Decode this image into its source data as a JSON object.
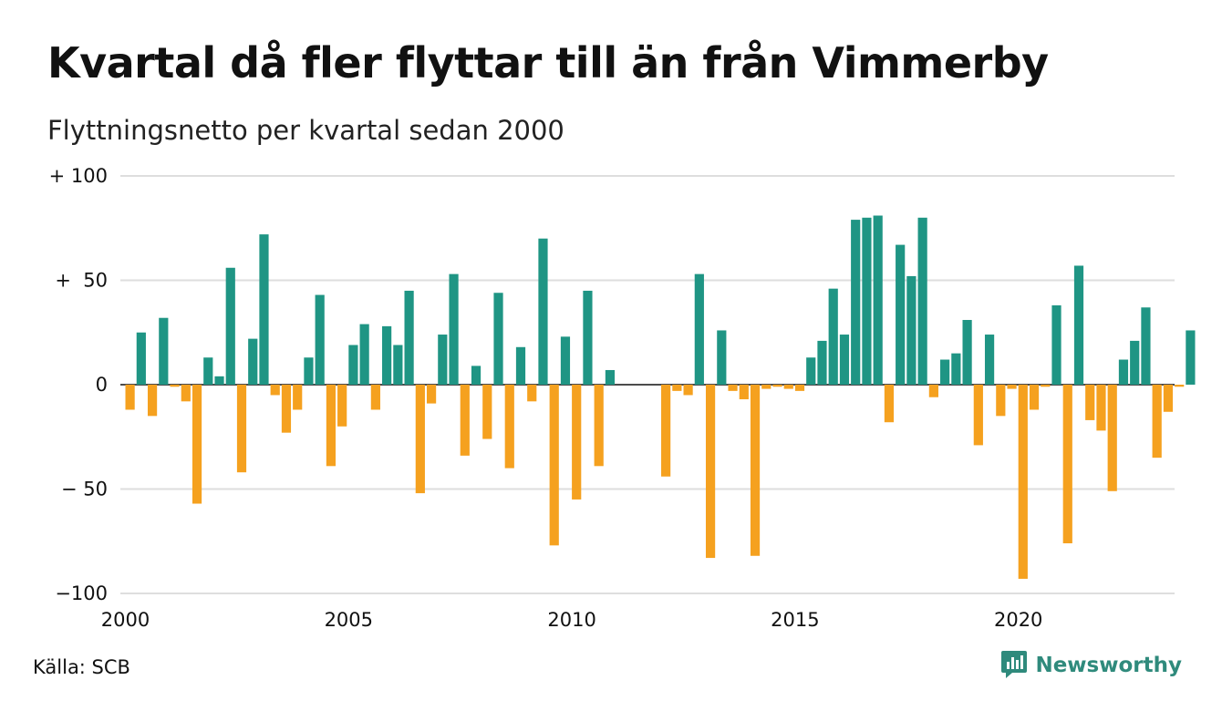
{
  "title": "Kvartal då fler flyttar till än från Vimmerby",
  "subtitle": "Flyttningsnetto per kvartal sedan 2000",
  "source": "Källa: SCB",
  "brand": {
    "name": "Newsworthy",
    "icon": "newsworthy-chart-logo-icon"
  },
  "colors": {
    "positive": "#1f9584",
    "negative": "#f5a11f",
    "grid": "#dedede",
    "brand": "#2f8a7c"
  },
  "chart_data": {
    "type": "bar",
    "x_start": "2000 Q1",
    "quarters_per_year": 4,
    "values": [
      -12,
      25,
      -15,
      32,
      -1,
      -8,
      -57,
      13,
      4,
      56,
      -42,
      22,
      72,
      -5,
      -23,
      -12,
      13,
      43,
      -39,
      -20,
      19,
      29,
      -12,
      28,
      19,
      45,
      -52,
      -9,
      24,
      53,
      -34,
      9,
      -26,
      44,
      -40,
      18,
      -8,
      70,
      -77,
      23,
      -55,
      45,
      -39,
      7,
      0,
      0,
      0,
      0,
      -44,
      -3,
      -5,
      53,
      -83,
      26,
      -3,
      -7,
      -82,
      -2,
      -1,
      -2,
      -3,
      13,
      21,
      46,
      24,
      79,
      80,
      81,
      -18,
      67,
      52,
      80,
      -6,
      12,
      15,
      31,
      -29,
      24,
      -15,
      -2,
      -93,
      -12,
      -1,
      38,
      -76,
      57,
      -17,
      -22,
      -51,
      12,
      21,
      37,
      -35,
      -13,
      -1,
      26
    ],
    "ylim": [
      -100,
      100
    ],
    "yticks": [
      {
        "value": 100,
        "label": "+ 100"
      },
      {
        "value": 50,
        "label": "+  50"
      },
      {
        "value": 0,
        "label": "0"
      },
      {
        "value": -50,
        "label": "− 50"
      },
      {
        "value": -100,
        "label": "−100"
      }
    ],
    "xticks": [
      {
        "label": "2000",
        "quarter_index": 0
      },
      {
        "label": "2005",
        "quarter_index": 20
      },
      {
        "label": "2010",
        "quarter_index": 40
      },
      {
        "label": "2015",
        "quarter_index": 60
      },
      {
        "label": "2020",
        "quarter_index": 80
      }
    ],
    "grid": true,
    "legend": "none"
  }
}
